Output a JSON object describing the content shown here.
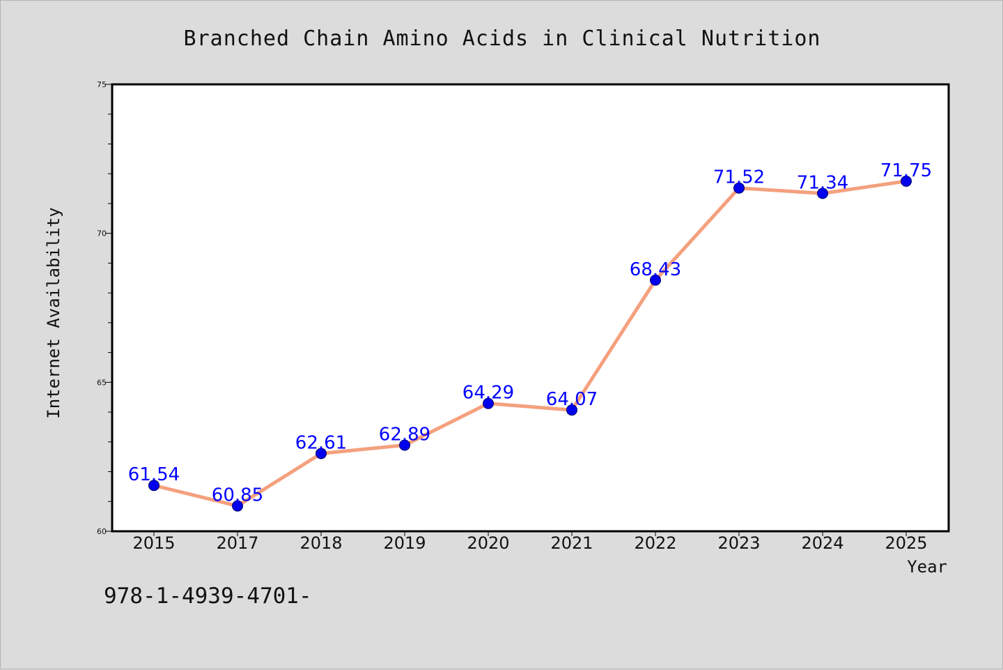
{
  "chart_data": {
    "type": "line",
    "title": "Branched Chain Amino Acids in Clinical Nutrition",
    "xlabel": "Year",
    "ylabel": "Internet Availability",
    "categories": [
      "2015",
      "2017",
      "2018",
      "2019",
      "2020",
      "2021",
      "2022",
      "2023",
      "2024",
      "2025"
    ],
    "values": [
      61.54,
      60.85,
      62.61,
      62.89,
      64.29,
      64.07,
      68.43,
      71.52,
      71.34,
      71.75
    ],
    "data_labels": [
      "61.54",
      "60.85",
      "62.61",
      "62.89",
      "64.29",
      "64.07",
      "68.43",
      "71.52",
      "71.34",
      "71.75"
    ],
    "ylim": [
      60,
      75
    ],
    "yticks": [
      "60",
      "65",
      "70",
      "75"
    ],
    "grid": false,
    "line_color": "#f4a07e",
    "marker_color": "#0000ee",
    "label_color": "#0000ff"
  },
  "footer": {
    "code": "978-1-4939-4701-"
  }
}
